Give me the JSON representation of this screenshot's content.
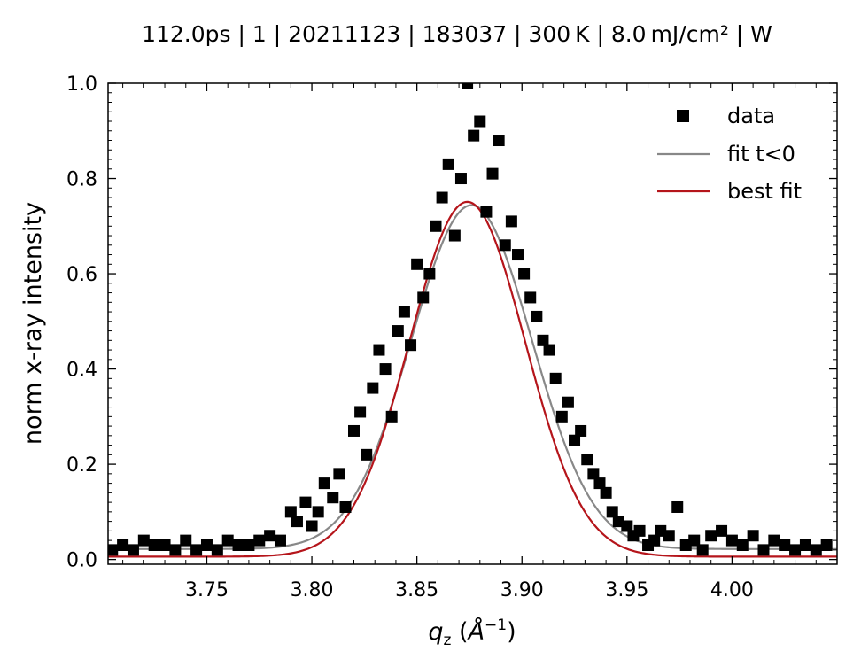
{
  "chart_data": {
    "type": "scatter",
    "title": "112.0ps | 1 | 20211123 | 183037 | 300 K | 8.0 mJ/cm² | W",
    "xlabel": "q_z (Å⁻¹)",
    "ylabel": "norm x-ray intensity",
    "xlim": [
      3.703,
      4.05
    ],
    "ylim": [
      -0.01,
      1.0
    ],
    "xticks": [
      3.75,
      3.8,
      3.85,
      3.9,
      3.95,
      4.0
    ],
    "xtick_labels": [
      "3.75",
      "3.80",
      "3.85",
      "3.90",
      "3.95",
      "4.00"
    ],
    "yticks": [
      0.0,
      0.2,
      0.4,
      0.6,
      0.8,
      1.0
    ],
    "ytick_labels": [
      "0.0",
      "0.2",
      "0.4",
      "0.6",
      "0.8",
      "1.0"
    ],
    "grid": false,
    "legend_position": "top-right",
    "series": [
      {
        "name": "data",
        "kind": "scatter",
        "marker": "square",
        "color": "#000000",
        "x": [
          3.705,
          3.71,
          3.715,
          3.72,
          3.725,
          3.73,
          3.735,
          3.74,
          3.745,
          3.75,
          3.755,
          3.76,
          3.765,
          3.77,
          3.775,
          3.78,
          3.785,
          3.79,
          3.793,
          3.797,
          3.8,
          3.803,
          3.806,
          3.81,
          3.813,
          3.816,
          3.82,
          3.823,
          3.826,
          3.829,
          3.832,
          3.835,
          3.838,
          3.841,
          3.844,
          3.847,
          3.85,
          3.853,
          3.856,
          3.859,
          3.862,
          3.865,
          3.868,
          3.871,
          3.874,
          3.877,
          3.88,
          3.883,
          3.886,
          3.889,
          3.892,
          3.895,
          3.898,
          3.901,
          3.904,
          3.907,
          3.91,
          3.913,
          3.916,
          3.919,
          3.922,
          3.925,
          3.928,
          3.931,
          3.934,
          3.937,
          3.94,
          3.943,
          3.946,
          3.95,
          3.953,
          3.956,
          3.96,
          3.963,
          3.966,
          3.97,
          3.974,
          3.978,
          3.982,
          3.986,
          3.99,
          3.995,
          4.0,
          4.005,
          4.01,
          4.015,
          4.02,
          4.025,
          4.03,
          4.035,
          4.04,
          4.045
        ],
        "y": [
          0.02,
          0.03,
          0.02,
          0.04,
          0.03,
          0.03,
          0.02,
          0.04,
          0.02,
          0.03,
          0.02,
          0.04,
          0.03,
          0.03,
          0.04,
          0.05,
          0.04,
          0.1,
          0.08,
          0.12,
          0.07,
          0.1,
          0.16,
          0.13,
          0.18,
          0.11,
          0.27,
          0.31,
          0.22,
          0.36,
          0.44,
          0.4,
          0.3,
          0.48,
          0.52,
          0.45,
          0.62,
          0.55,
          0.6,
          0.7,
          0.76,
          0.83,
          0.68,
          0.8,
          1.0,
          0.89,
          0.92,
          0.73,
          0.81,
          0.88,
          0.66,
          0.71,
          0.64,
          0.6,
          0.55,
          0.51,
          0.46,
          0.44,
          0.38,
          0.3,
          0.33,
          0.25,
          0.27,
          0.21,
          0.18,
          0.16,
          0.14,
          0.1,
          0.08,
          0.07,
          0.05,
          0.06,
          0.03,
          0.04,
          0.06,
          0.05,
          0.11,
          0.03,
          0.04,
          0.02,
          0.05,
          0.06,
          0.04,
          0.03,
          0.05,
          0.02,
          0.04,
          0.03,
          0.02,
          0.03,
          0.02,
          0.03
        ]
      },
      {
        "name": "fit t<0",
        "kind": "line",
        "color": "#888888",
        "model": {
          "type": "gaussian",
          "amplitude": 0.722,
          "center": 3.876,
          "sigma": 0.0288,
          "offset": 0.022
        }
      },
      {
        "name": "best fit",
        "kind": "line",
        "color": "#b5151b",
        "model": {
          "type": "gaussian",
          "amplitude": 0.745,
          "center": 3.874,
          "sigma": 0.0275,
          "offset": 0.006
        }
      }
    ]
  }
}
